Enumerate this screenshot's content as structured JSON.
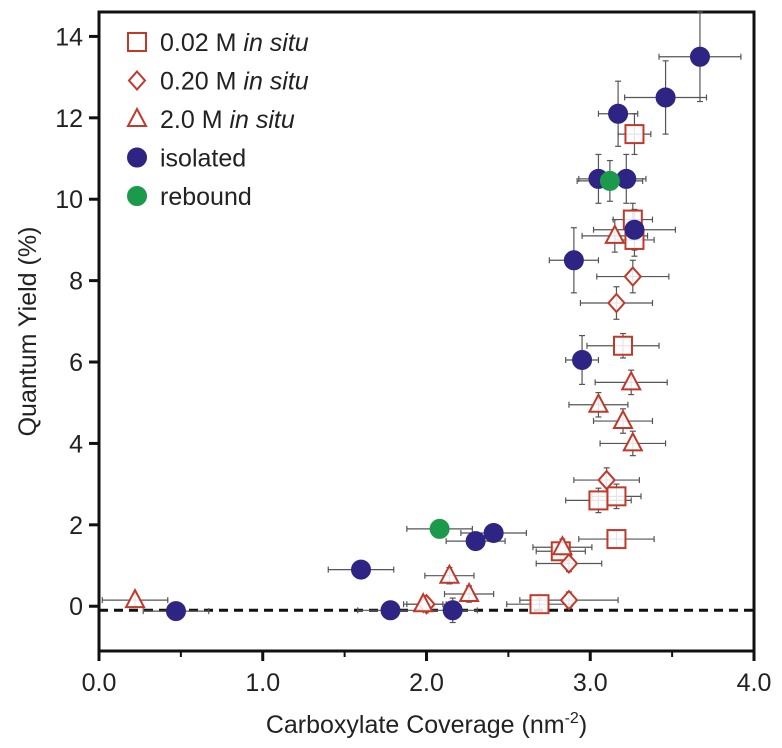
{
  "chart_data": {
    "type": "scatter",
    "xlabel": "Carboxylate Coverage (nm",
    "xlabel_superscript": "-2",
    "xlabel_suffix": ")",
    "ylabel": "Quantum Yield (%)",
    "xlim": [
      0.0,
      4.0
    ],
    "ylim": [
      -1.1,
      14.6
    ],
    "x_ticks": [
      "0.0",
      "1.0",
      "2.0",
      "3.0",
      "4.0"
    ],
    "x_tick_values": [
      0,
      1,
      2,
      3,
      4
    ],
    "y_ticks": [
      "0",
      "2",
      "4",
      "6",
      "8",
      "10",
      "12",
      "14"
    ],
    "y_tick_values": [
      0,
      2,
      4,
      6,
      8,
      10,
      12,
      14
    ],
    "grid": false,
    "legend_position": "top-left",
    "reference_line": {
      "y": -0.1,
      "style": "dashed"
    },
    "colors": {
      "in_situ": "#c0392b",
      "isolated": "#2e2483",
      "rebound": "#1a9a4a",
      "error_bar": "#555555",
      "axis": "#111111"
    },
    "series": [
      {
        "name": "0.02 M",
        "name_italic": "in situ",
        "marker": "square",
        "points": [
          {
            "x": 3.27,
            "y": 11.6,
            "xerr": 0.1,
            "yerr": 0.5
          },
          {
            "x": 3.26,
            "y": 9.5,
            "xerr": 0.12,
            "yerr": 0.4
          },
          {
            "x": 3.27,
            "y": 9.0,
            "xerr": 0.12,
            "yerr": 0.4
          },
          {
            "x": 3.2,
            "y": 6.4,
            "xerr": 0.22,
            "yerr": 0.3
          },
          {
            "x": 3.05,
            "y": 2.6,
            "xerr": 0.2,
            "yerr": 0.3
          },
          {
            "x": 3.16,
            "y": 2.7,
            "xerr": 0.15,
            "yerr": 0.3
          },
          {
            "x": 3.16,
            "y": 1.65,
            "xerr": 0.23,
            "yerr": 0.2
          },
          {
            "x": 2.82,
            "y": 1.35,
            "xerr": 0.15,
            "yerr": 0.2
          },
          {
            "x": 2.69,
            "y": 0.05,
            "xerr": 0.2,
            "yerr": 0.15
          }
        ]
      },
      {
        "name": "0.20 M",
        "name_italic": "in situ",
        "marker": "diamond",
        "points": [
          {
            "x": 3.26,
            "y": 8.1,
            "xerr": 0.22,
            "yerr": 0.4
          },
          {
            "x": 3.16,
            "y": 7.45,
            "xerr": 0.22,
            "yerr": 0.4
          },
          {
            "x": 3.1,
            "y": 3.1,
            "xerr": 0.2,
            "yerr": 0.3
          },
          {
            "x": 2.87,
            "y": 1.05,
            "xerr": 0.2,
            "yerr": 0.2
          },
          {
            "x": 2.87,
            "y": 0.15,
            "xerr": 0.3,
            "yerr": 0.2
          },
          {
            "x": 2.0,
            "y": 0.05,
            "xerr": 0.12,
            "yerr": 0.15
          }
        ]
      },
      {
        "name": "2.0 M",
        "name_italic": "in situ",
        "marker": "triangle",
        "points": [
          {
            "x": 3.15,
            "y": 9.1,
            "xerr": 0.2,
            "yerr": 0.4
          },
          {
            "x": 3.25,
            "y": 5.5,
            "xerr": 0.22,
            "yerr": 0.3
          },
          {
            "x": 3.05,
            "y": 4.95,
            "xerr": 0.18,
            "yerr": 0.3
          },
          {
            "x": 3.2,
            "y": 4.55,
            "xerr": 0.18,
            "yerr": 0.3
          },
          {
            "x": 3.26,
            "y": 4.0,
            "xerr": 0.2,
            "yerr": 0.3
          },
          {
            "x": 2.83,
            "y": 1.45,
            "xerr": 0.18,
            "yerr": 0.2
          },
          {
            "x": 2.14,
            "y": 0.75,
            "xerr": 0.15,
            "yerr": 0.2
          },
          {
            "x": 2.26,
            "y": 0.3,
            "xerr": 0.15,
            "yerr": 0.2
          },
          {
            "x": 1.98,
            "y": 0.05,
            "xerr": 0.12,
            "yerr": 0.15
          },
          {
            "x": 0.22,
            "y": 0.15,
            "xerr": 0.2,
            "yerr": 0.15
          }
        ]
      },
      {
        "name": "isolated",
        "marker": "filled-circle",
        "points": [
          {
            "x": 3.67,
            "y": 13.5,
            "xerr": 0.25,
            "yerr": 1.1
          },
          {
            "x": 3.46,
            "y": 12.5,
            "xerr": 0.25,
            "yerr": 0.9
          },
          {
            "x": 3.17,
            "y": 12.1,
            "xerr": 0.12,
            "yerr": 0.8
          },
          {
            "x": 3.05,
            "y": 10.5,
            "xerr": 0.12,
            "yerr": 0.6
          },
          {
            "x": 3.22,
            "y": 10.5,
            "xerr": 0.12,
            "yerr": 0.6
          },
          {
            "x": 3.27,
            "y": 9.25,
            "xerr": 0.25,
            "yerr": 0.5
          },
          {
            "x": 2.9,
            "y": 8.5,
            "xerr": 0.15,
            "yerr": 0.8
          },
          {
            "x": 2.95,
            "y": 6.05,
            "xerr": 0.1,
            "yerr": 0.6
          },
          {
            "x": 2.41,
            "y": 1.8,
            "xerr": 0.2,
            "yerr": 0.2
          },
          {
            "x": 2.3,
            "y": 1.6,
            "xerr": 0.18,
            "yerr": 0.2
          },
          {
            "x": 1.6,
            "y": 0.9,
            "xerr": 0.2,
            "yerr": 0.15
          },
          {
            "x": 2.16,
            "y": -0.1,
            "xerr": 0.15,
            "yerr": 0.3
          },
          {
            "x": 1.78,
            "y": -0.1,
            "xerr": 0.2,
            "yerr": 0.15
          },
          {
            "x": 0.47,
            "y": -0.12,
            "xerr": 0.2,
            "yerr": 0.15
          }
        ]
      },
      {
        "name": "rebound",
        "marker": "filled-circle",
        "points": [
          {
            "x": 3.12,
            "y": 10.45,
            "xerr": 0.2,
            "yerr": 0.5
          },
          {
            "x": 2.08,
            "y": 1.9,
            "xerr": 0.2,
            "yerr": 0.2
          }
        ]
      }
    ]
  }
}
